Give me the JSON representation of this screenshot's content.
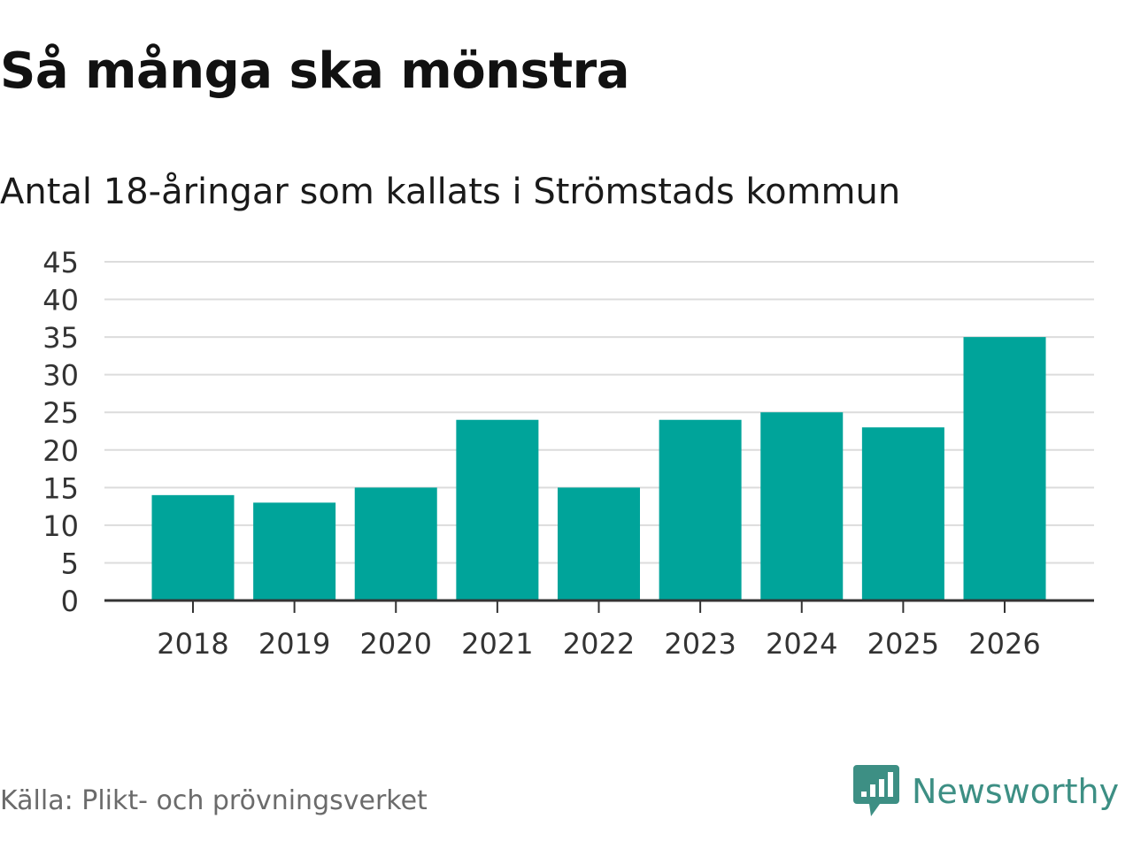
{
  "header": {
    "title": "Så många ska mönstra",
    "subtitle": "Antal 18-åringar som kallats i Strömstads kommun"
  },
  "chart_data": {
    "type": "bar",
    "title": "Så många ska mönstra",
    "subtitle": "Antal 18-åringar som kallats i Strömstads kommun",
    "xlabel": "",
    "ylabel": "",
    "categories": [
      "2018",
      "2019",
      "2020",
      "2021",
      "2022",
      "2023",
      "2024",
      "2025",
      "2026"
    ],
    "values": [
      14,
      13,
      15,
      24,
      15,
      24,
      25,
      23,
      35
    ],
    "ylim": [
      0,
      45
    ],
    "yticks": [
      0,
      5,
      10,
      15,
      20,
      25,
      30,
      35,
      40,
      45
    ],
    "grid": true,
    "legend": "none",
    "bar_color": "#00a49a",
    "grid_color": "#dcdcdc",
    "axis_color": "#333333"
  },
  "footer": {
    "source": "Källa: Plikt- och prövningsverket",
    "brand": "Newsworthy",
    "brand_icon": "newsworthy-logo-icon",
    "brand_color": "#3d8f84"
  }
}
